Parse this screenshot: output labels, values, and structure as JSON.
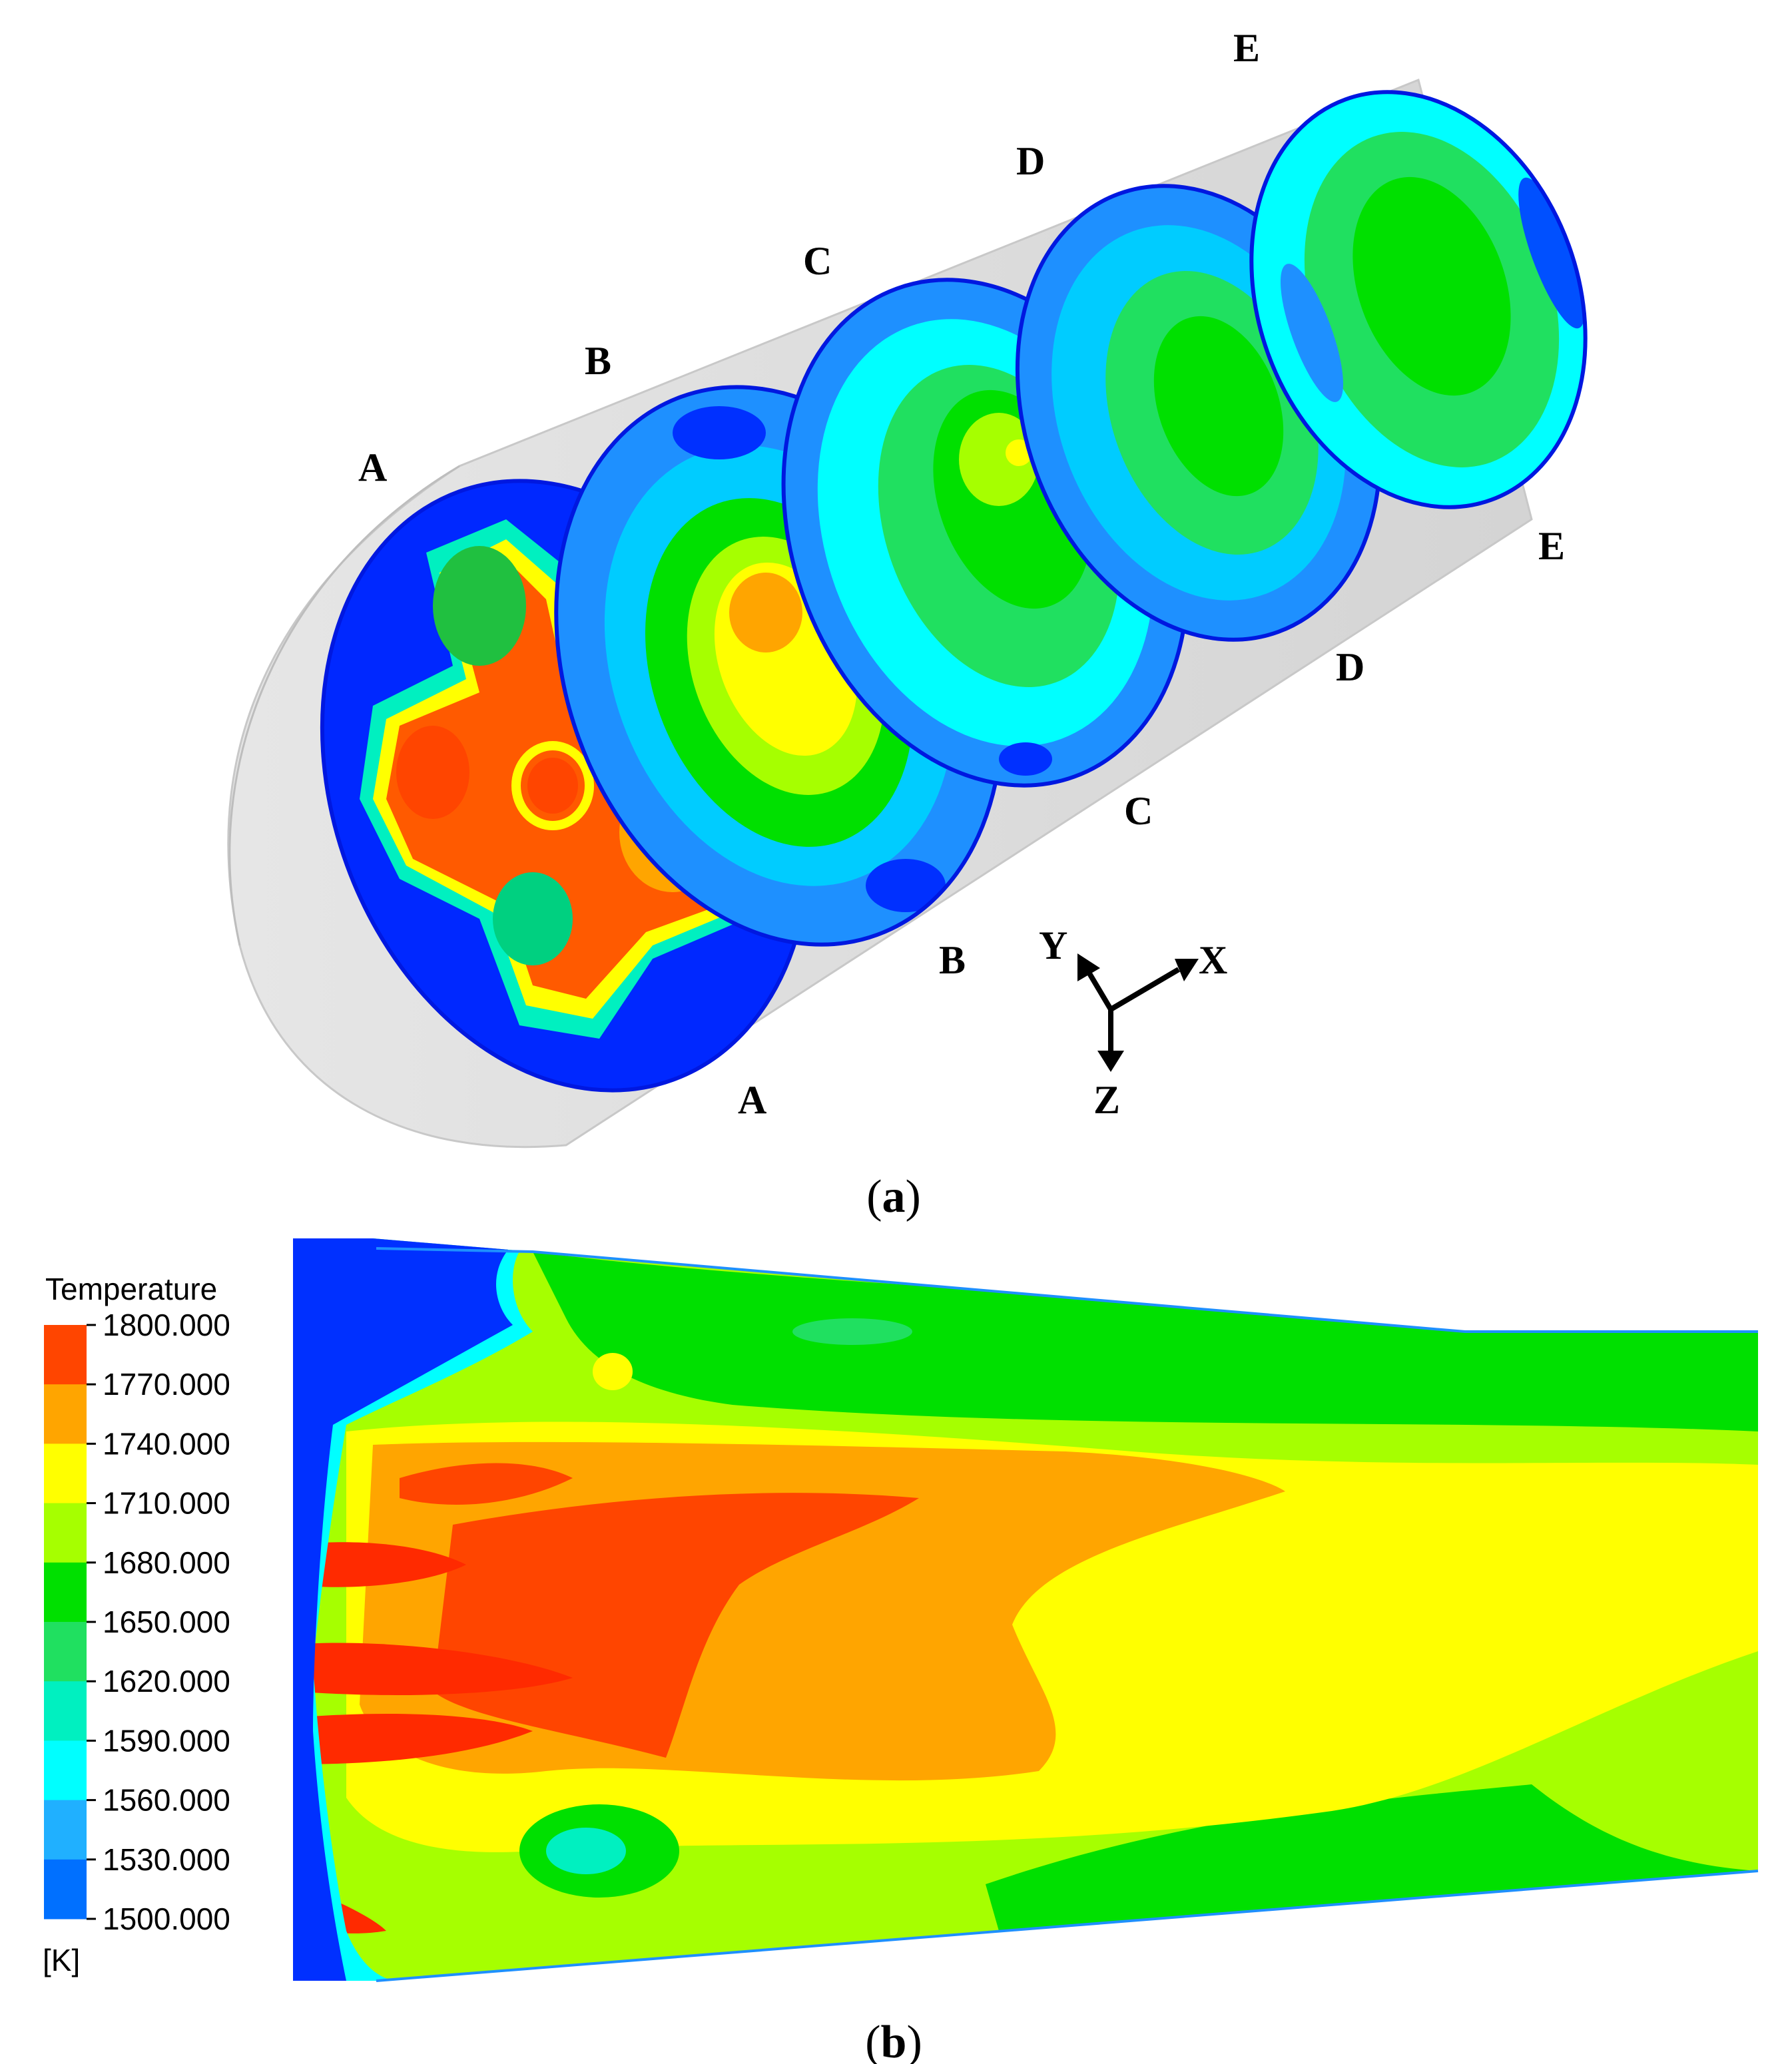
{
  "panel_a": {
    "caption_letter": "a",
    "sections": [
      {
        "id": "A",
        "top_label": "A",
        "bottom_label": "A"
      },
      {
        "id": "B",
        "top_label": "B",
        "bottom_label": "B"
      },
      {
        "id": "C",
        "top_label": "C",
        "bottom_label": "C"
      },
      {
        "id": "D",
        "top_label": "D",
        "bottom_label": "D"
      },
      {
        "id": "E",
        "top_label": "E",
        "bottom_label": "E"
      }
    ],
    "axes": {
      "x": "X",
      "y": "Y",
      "z": "Z"
    }
  },
  "panel_b": {
    "caption_letter": "b",
    "legend": {
      "title": "Temperature",
      "unit": "[K]",
      "levels": [
        "1800.000",
        "1770.000",
        "1740.000",
        "1710.000",
        "1680.000",
        "1650.000",
        "1620.000",
        "1590.000",
        "1560.000",
        "1530.000",
        "1500.000"
      ],
      "colors": [
        "#ff4500",
        "#ffa500",
        "#ffff00",
        "#a6ff00",
        "#00e000",
        "#20e060",
        "#00f0c0",
        "#00ffff",
        "#20b0ff",
        "#0070ff",
        "#0030ff"
      ]
    }
  }
}
